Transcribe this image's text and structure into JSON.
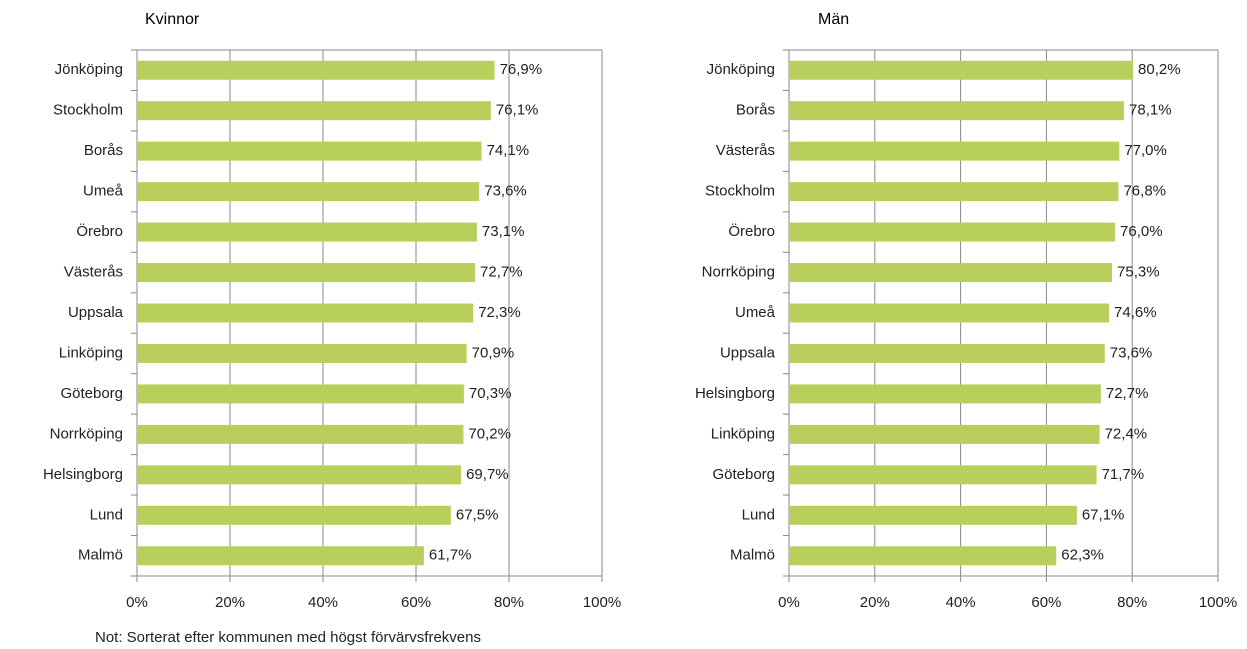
{
  "chart_data": [
    {
      "type": "barh",
      "title": "Kvinnor",
      "categories": [
        "Jönköping",
        "Stockholm",
        "Borås",
        "Umeå",
        "Örebro",
        "Västerås",
        "Uppsala",
        "Linköping",
        "Göteborg",
        "Norrköping",
        "Helsingborg",
        "Lund",
        "Malmö"
      ],
      "values": [
        76.9,
        76.1,
        74.1,
        73.6,
        73.1,
        72.7,
        72.3,
        70.9,
        70.3,
        70.2,
        69.7,
        67.5,
        61.7
      ],
      "value_labels": [
        "76,9%",
        "76,1%",
        "74,1%",
        "73,6%",
        "73,1%",
        "72,7%",
        "72,3%",
        "70,9%",
        "70,3%",
        "70,2%",
        "69,7%",
        "67,5%",
        "61,7%"
      ],
      "color": "#b9cf5b",
      "xlim": [
        0,
        100
      ],
      "xticks": [
        {
          "value": 0,
          "label": "0%"
        },
        {
          "value": 20,
          "label": "20%"
        },
        {
          "value": 40,
          "label": "40%"
        },
        {
          "value": 60,
          "label": "60%"
        },
        {
          "value": 80,
          "label": "80%"
        },
        {
          "value": 100,
          "label": "100%"
        }
      ],
      "grid": true
    },
    {
      "type": "barh",
      "title": "Män",
      "categories": [
        "Jönköping",
        "Borås",
        "Västerås",
        "Stockholm",
        "Örebro",
        "Norrköping",
        "Umeå",
        "Uppsala",
        "Helsingborg",
        "Linköping",
        "Göteborg",
        "Lund",
        "Malmö"
      ],
      "values": [
        80.2,
        78.1,
        77.0,
        76.8,
        76.0,
        75.3,
        74.6,
        73.6,
        72.7,
        72.4,
        71.7,
        67.1,
        62.3
      ],
      "value_labels": [
        "80,2%",
        "78,1%",
        "77,0%",
        "76,8%",
        "76,0%",
        "75,3%",
        "74,6%",
        "73,6%",
        "72,7%",
        "72,4%",
        "71,7%",
        "67,1%",
        "62,3%"
      ],
      "color": "#b9cf5b",
      "xlim": [
        0,
        100
      ],
      "xticks": [
        {
          "value": 0,
          "label": "0%"
        },
        {
          "value": 20,
          "label": "20%"
        },
        {
          "value": 40,
          "label": "40%"
        },
        {
          "value": 60,
          "label": "60%"
        },
        {
          "value": 80,
          "label": "80%"
        },
        {
          "value": 100,
          "label": "100%"
        }
      ],
      "grid": true
    }
  ],
  "note": "Not: Sorterat efter kommunen med högst förvärvsfrekvens"
}
